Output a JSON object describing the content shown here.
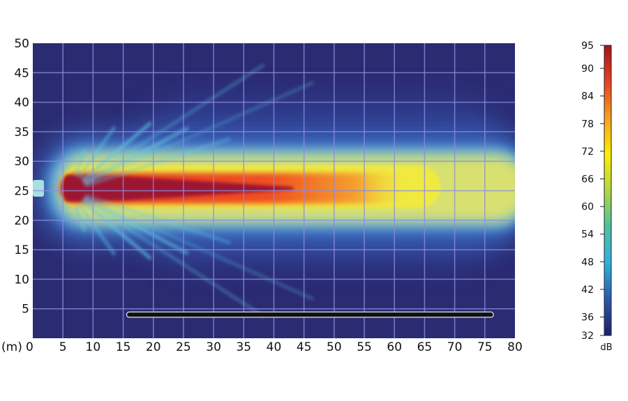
{
  "chart_data": {
    "type": "heatmap",
    "x_unit_label": "(m)",
    "xlim": [
      0,
      80
    ],
    "ylim": [
      0,
      50
    ],
    "x_ticks": [
      0,
      5,
      10,
      15,
      20,
      25,
      30,
      35,
      40,
      45,
      50,
      55,
      60,
      65,
      70,
      75,
      80
    ],
    "y_ticks": [
      5,
      10,
      15,
      20,
      25,
      30,
      35,
      40,
      45,
      50
    ],
    "grid": true,
    "colorbar": {
      "label": "dB",
      "range": [
        32,
        95
      ],
      "ticks": [
        95,
        90,
        84,
        78,
        72,
        66,
        60,
        54,
        48,
        42,
        36,
        32
      ],
      "colors": [
        "#1e1e6e",
        "#2a5aaa",
        "#30b0e0",
        "#50c0a0",
        "#b0d840",
        "#ffee00",
        "#f7a020",
        "#e84020",
        "#a0141e"
      ]
    },
    "background_color": "#2b2b72",
    "source_position": [
      5,
      25
    ],
    "beam_direction": "+x",
    "barrier_line": {
      "x_start": 16,
      "x_end": 76,
      "y": 4
    }
  }
}
